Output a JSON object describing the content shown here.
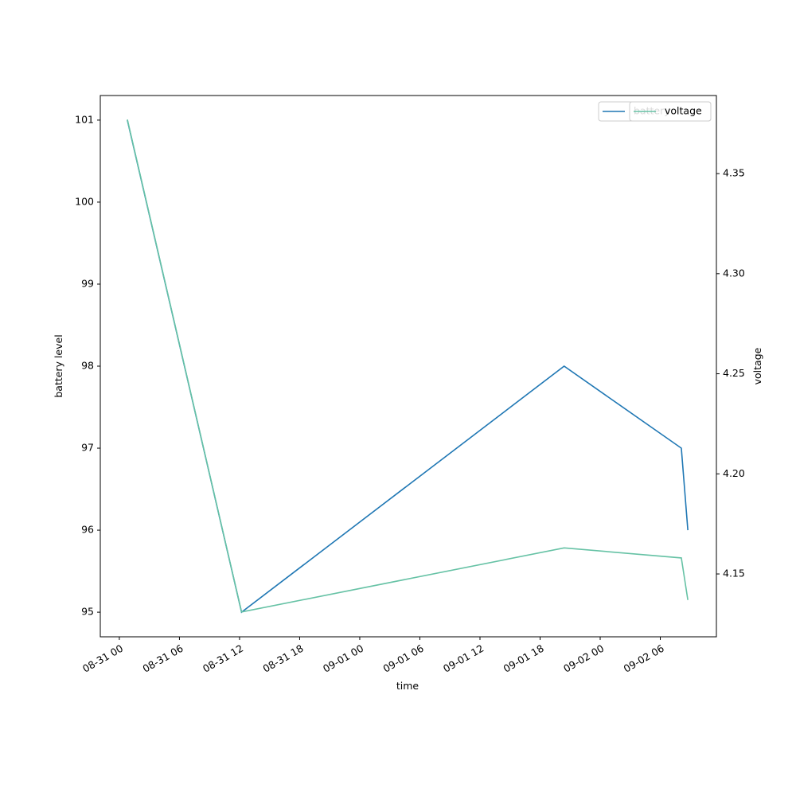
{
  "chart_data": {
    "type": "line",
    "x_label": "time",
    "y_label": "battery level",
    "y2_label": "voltage",
    "x": [
      0.8,
      12.2,
      44.4,
      56.1,
      56.75
    ],
    "series": [
      {
        "name": "battery",
        "color": "#1f77b4",
        "values": [
          101,
          95,
          98,
          97,
          96
        ]
      },
      {
        "name": "voltage",
        "color": "#66c2a5",
        "axis": "y2",
        "values": [
          4.377,
          4.131,
          4.163,
          4.158,
          4.137
        ]
      }
    ],
    "xlim": [
      -1.9,
      59.6
    ],
    "xticks": [
      {
        "value": 0,
        "label": "08-31 00"
      },
      {
        "value": 6,
        "label": "08-31 06"
      },
      {
        "value": 12,
        "label": "08-31 12"
      },
      {
        "value": 18,
        "label": "08-31 18"
      },
      {
        "value": 24,
        "label": "09-01 00"
      },
      {
        "value": 30,
        "label": "09-01 06"
      },
      {
        "value": 36,
        "label": "09-01 12"
      },
      {
        "value": 42,
        "label": "09-01 18"
      },
      {
        "value": 48,
        "label": "09-02 00"
      },
      {
        "value": 54,
        "label": "09-02 06"
      }
    ],
    "ylim": [
      94.7,
      101.3
    ],
    "yticks": [
      95,
      96,
      97,
      98,
      99,
      100,
      101
    ],
    "y2lim": [
      4.1186,
      4.389
    ],
    "y2ticks": [
      {
        "value": 4.15,
        "label": "4.15"
      },
      {
        "value": 4.2,
        "label": "4.20"
      },
      {
        "value": 4.25,
        "label": "4.25"
      },
      {
        "value": 4.3,
        "label": "4.30"
      },
      {
        "value": 4.35,
        "label": "4.35"
      }
    ],
    "legend": "upper right"
  }
}
